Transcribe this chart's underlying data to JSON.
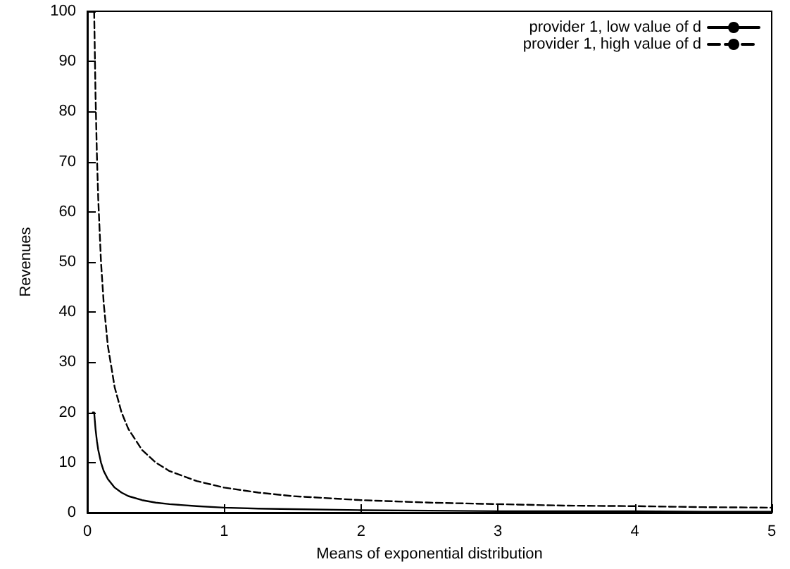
{
  "chart_data": {
    "type": "line",
    "xlabel": "Means of exponential distribution",
    "ylabel": "Revenues",
    "xlim": [
      0,
      5
    ],
    "xticks": [
      0,
      1,
      2,
      3,
      4,
      5
    ],
    "ylim": [
      0,
      100
    ],
    "yticks": [
      0,
      10,
      20,
      30,
      40,
      50,
      60,
      70,
      80,
      90,
      100
    ],
    "grid": false,
    "legend": "top right",
    "marker": "none",
    "series": [
      {
        "name": "provider 1, low value of d",
        "color": "#000000",
        "line_style": "solid",
        "x": [
          0.04,
          0.05,
          0.06,
          0.07,
          0.08,
          0.1,
          0.12,
          0.15,
          0.2,
          0.25,
          0.3,
          0.4,
          0.5,
          0.6,
          0.8,
          1,
          1.25,
          1.5,
          2,
          2.5,
          3,
          3.5,
          4,
          4.5,
          5
        ],
        "values": [
          20,
          20,
          16.7,
          14.3,
          12.5,
          10,
          8.3,
          6.7,
          5,
          4,
          3.3,
          2.5,
          2,
          1.7,
          1.3,
          1,
          0.8,
          0.7,
          0.5,
          0.4,
          0.3,
          0.3,
          0.3,
          0.2,
          0.2
        ]
      },
      {
        "name": "provider 1, high value of d",
        "color": "#000000",
        "line_style": "dashed",
        "x": [
          0.05,
          0.06,
          0.07,
          0.08,
          0.1,
          0.12,
          0.15,
          0.2,
          0.25,
          0.3,
          0.4,
          0.5,
          0.6,
          0.8,
          1,
          1.25,
          1.5,
          2,
          2.5,
          3,
          3.5,
          4,
          4.5,
          5
        ],
        "values": [
          100,
          83.3,
          71.4,
          62.5,
          50,
          41.7,
          33.3,
          25,
          20,
          16.7,
          12.5,
          10,
          8.3,
          6.3,
          5,
          4,
          3.3,
          2.5,
          2,
          1.7,
          1.4,
          1.3,
          1.1,
          1
        ]
      }
    ]
  }
}
